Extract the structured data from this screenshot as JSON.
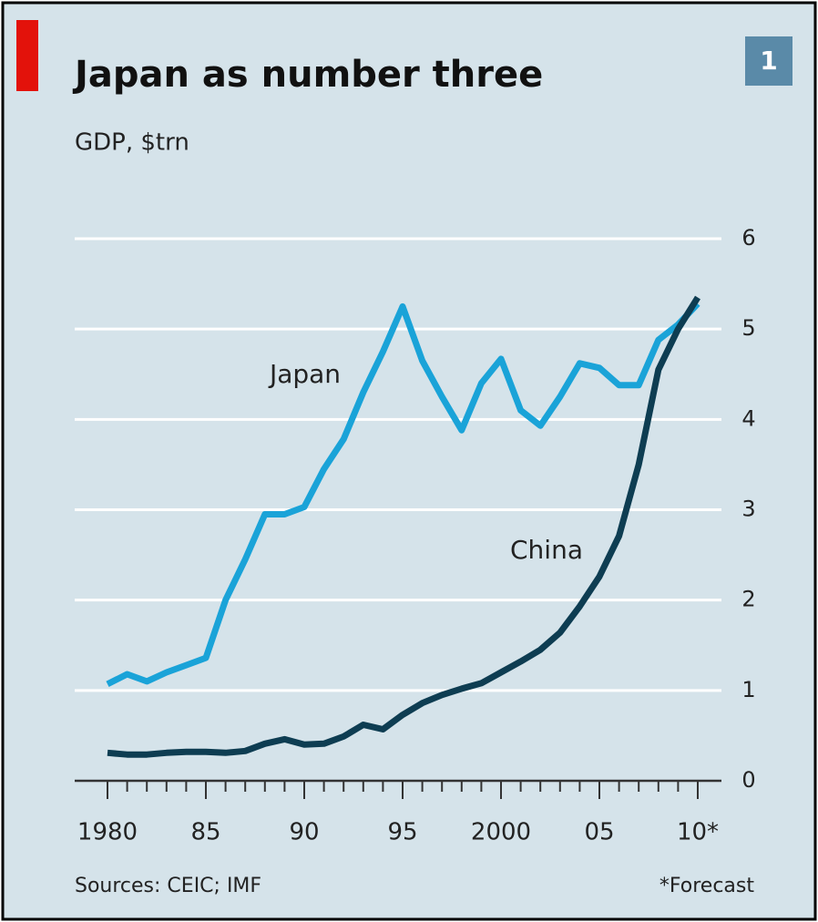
{
  "chart_data": {
    "type": "line",
    "title": "Japan as number three",
    "subtitle": "GDP, $trn",
    "panel_label": "1",
    "source": "Sources: CEIC; IMF",
    "note": "*Forecast",
    "x": [
      1980,
      1981,
      1982,
      1983,
      1984,
      1985,
      1986,
      1987,
      1988,
      1989,
      1990,
      1991,
      1992,
      1993,
      1994,
      1995,
      1996,
      1997,
      1998,
      1999,
      2000,
      2001,
      2002,
      2003,
      2004,
      2005,
      2006,
      2007,
      2008,
      2009,
      2010
    ],
    "series": [
      {
        "name": "Japan",
        "color": "#1aa3d8",
        "values": [
          1.07,
          1.18,
          1.1,
          1.2,
          1.28,
          1.36,
          2.0,
          2.45,
          2.95,
          2.95,
          3.03,
          3.45,
          3.78,
          4.3,
          4.75,
          5.25,
          4.65,
          4.25,
          3.88,
          4.4,
          4.67,
          4.1,
          3.93,
          4.25,
          4.62,
          4.57,
          4.38,
          4.38,
          4.88,
          5.05,
          5.28
        ]
      },
      {
        "name": "China",
        "color": "#0e3d52",
        "values": [
          0.31,
          0.29,
          0.29,
          0.31,
          0.32,
          0.32,
          0.31,
          0.33,
          0.41,
          0.46,
          0.4,
          0.41,
          0.49,
          0.62,
          0.57,
          0.73,
          0.86,
          0.95,
          1.02,
          1.08,
          1.2,
          1.32,
          1.45,
          1.64,
          1.93,
          2.26,
          2.71,
          3.5,
          4.55,
          5.0,
          5.35
        ]
      }
    ],
    "xlim": [
      1980,
      2010
    ],
    "xticks": [
      1980,
      {
        "value": 1985,
        "label": "85"
      },
      {
        "value": 1990,
        "label": "90"
      },
      {
        "value": 1995,
        "label": "95"
      },
      2000,
      {
        "value": 2005,
        "label": "05"
      },
      {
        "value": 2010,
        "label": "10*"
      }
    ],
    "ylim": [
      0,
      6
    ],
    "yticks": [
      0,
      1,
      2,
      3,
      4,
      5,
      6
    ],
    "grid": true
  }
}
